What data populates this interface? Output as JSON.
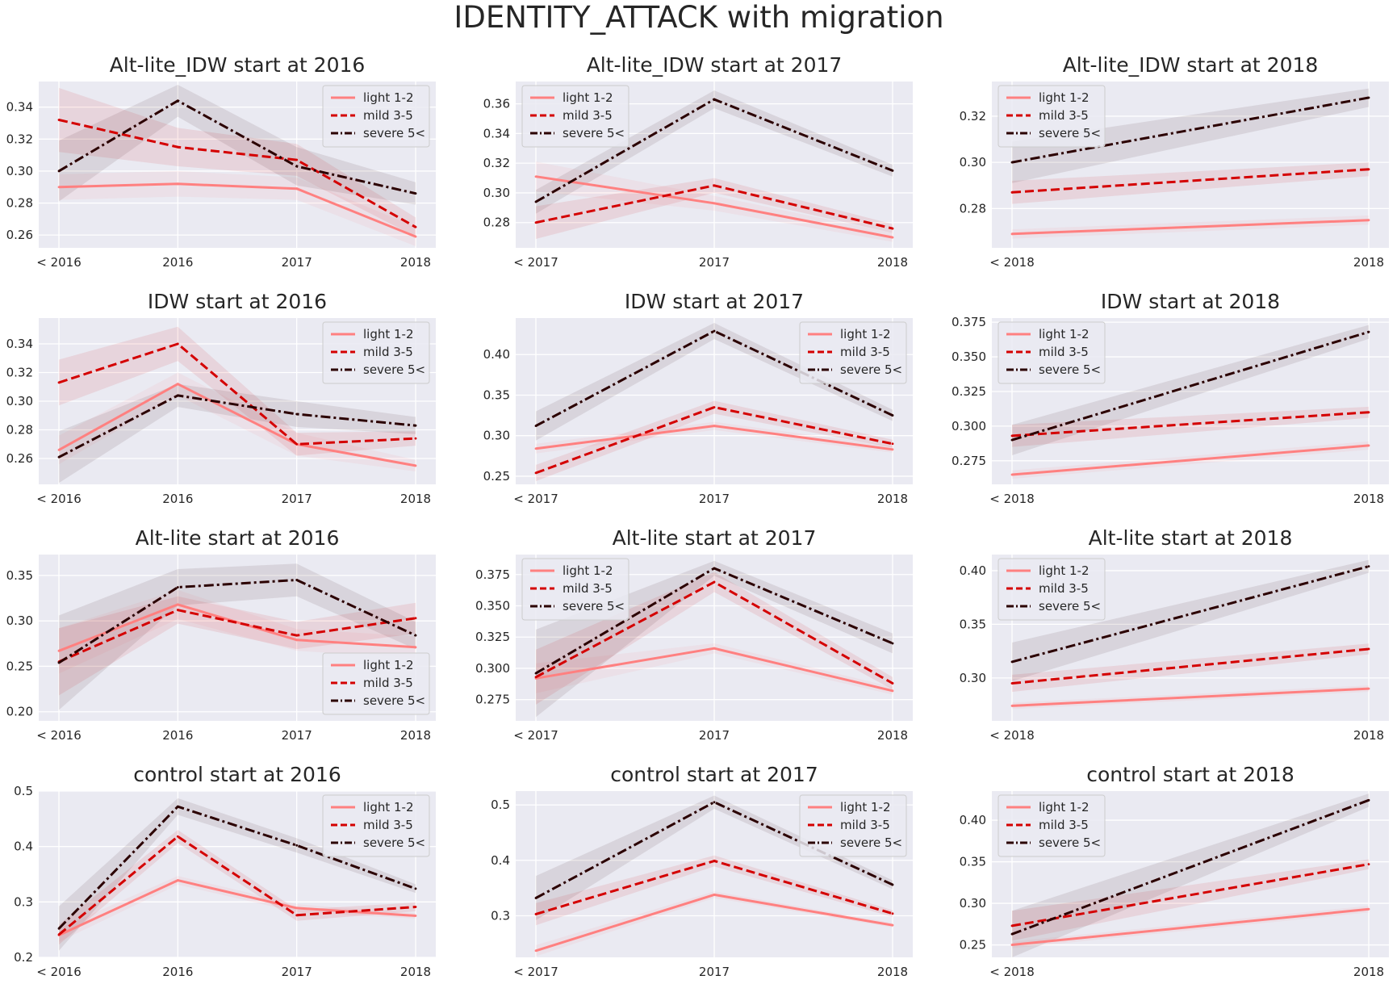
{
  "suptitle": "IDENTITY_ATTACK with migration",
  "series_styles": [
    {
      "name": "light 1-2",
      "color": "#ff8080",
      "dash": "solid"
    },
    {
      "name": "mild 3-5",
      "color": "#d40000",
      "dash": "dashed"
    },
    {
      "name": "severe 5<",
      "color": "#2b0000",
      "dash": "dashdot"
    }
  ],
  "chart_data": [
    {
      "type": "line",
      "title": "Alt-lite_IDW start at 2016",
      "categories": [
        "< 2016",
        "2016",
        "2017",
        "2018"
      ],
      "ylim": [
        0.252,
        0.356
      ],
      "yticks": [
        0.26,
        0.28,
        0.3,
        0.32,
        0.34
      ],
      "ytick_labels": [
        "0.26",
        "0.28",
        "0.30",
        "0.32",
        "0.34"
      ],
      "legend": "top-right",
      "series": [
        {
          "name": "light 1-2",
          "values": [
            0.29,
            0.292,
            0.289,
            0.259
          ],
          "ci": [
            0.008,
            0.008,
            0.007,
            0.006
          ]
        },
        {
          "name": "mild 3-5",
          "values": [
            0.332,
            0.315,
            0.307,
            0.265
          ],
          "ci": [
            0.02,
            0.012,
            0.01,
            0.006
          ]
        },
        {
          "name": "severe 5<",
          "values": [
            0.3,
            0.344,
            0.303,
            0.286
          ],
          "ci": [
            0.019,
            0.01,
            0.012,
            0.007
          ]
        }
      ]
    },
    {
      "type": "line",
      "title": "Alt-lite_IDW start at 2017",
      "categories": [
        "< 2017",
        "2017",
        "2018"
      ],
      "ylim": [
        0.263,
        0.375
      ],
      "yticks": [
        0.28,
        0.3,
        0.32,
        0.34,
        0.36
      ],
      "ytick_labels": [
        "0.28",
        "0.30",
        "0.32",
        "0.34",
        "0.36"
      ],
      "legend": "top-left",
      "series": [
        {
          "name": "light 1-2",
          "values": [
            0.311,
            0.293,
            0.27
          ],
          "ci": [
            0.01,
            0.005,
            0.003
          ]
        },
        {
          "name": "mild 3-5",
          "values": [
            0.28,
            0.305,
            0.276
          ],
          "ci": [
            0.011,
            0.005,
            0.003
          ]
        },
        {
          "name": "severe 5<",
          "values": [
            0.294,
            0.363,
            0.315
          ],
          "ci": [
            0.008,
            0.006,
            0.004
          ]
        }
      ]
    },
    {
      "type": "line",
      "title": "Alt-lite_IDW start at 2018",
      "categories": [
        "< 2018",
        "2018"
      ],
      "ylim": [
        0.263,
        0.335
      ],
      "yticks": [
        0.28,
        0.3,
        0.32
      ],
      "ytick_labels": [
        "0.28",
        "0.30",
        "0.32"
      ],
      "legend": "top-left",
      "series": [
        {
          "name": "light 1-2",
          "values": [
            0.269,
            0.275
          ],
          "ci": [
            0.002,
            0.002
          ]
        },
        {
          "name": "mild 3-5",
          "values": [
            0.287,
            0.297
          ],
          "ci": [
            0.005,
            0.003
          ]
        },
        {
          "name": "severe 5<",
          "values": [
            0.3,
            0.328
          ],
          "ci": [
            0.009,
            0.004
          ]
        }
      ]
    },
    {
      "type": "line",
      "title": "IDW start at 2016",
      "categories": [
        "< 2016",
        "2016",
        "2017",
        "2018"
      ],
      "ylim": [
        0.242,
        0.358
      ],
      "yticks": [
        0.26,
        0.28,
        0.3,
        0.32,
        0.34
      ],
      "ytick_labels": [
        "0.26",
        "0.28",
        "0.30",
        "0.32",
        "0.34"
      ],
      "legend": "top-right",
      "series": [
        {
          "name": "light 1-2",
          "values": [
            0.266,
            0.312,
            0.27,
            0.255
          ],
          "ci": [
            0.01,
            0.008,
            0.008,
            0.004
          ]
        },
        {
          "name": "mild 3-5",
          "values": [
            0.313,
            0.34,
            0.27,
            0.274
          ],
          "ci": [
            0.016,
            0.012,
            0.008,
            0.005
          ]
        },
        {
          "name": "severe 5<",
          "values": [
            0.261,
            0.304,
            0.291,
            0.283
          ],
          "ci": [
            0.018,
            0.008,
            0.009,
            0.006
          ]
        }
      ]
    },
    {
      "type": "line",
      "title": "IDW start at 2017",
      "categories": [
        "< 2017",
        "2017",
        "2018"
      ],
      "ylim": [
        0.24,
        0.445
      ],
      "yticks": [
        0.25,
        0.3,
        0.35,
        0.4
      ],
      "ytick_labels": [
        "0.25",
        "0.30",
        "0.35",
        "0.40"
      ],
      "legend": "top-right",
      "series": [
        {
          "name": "light 1-2",
          "values": [
            0.284,
            0.312,
            0.283
          ],
          "ci": [
            0.006,
            0.005,
            0.004
          ]
        },
        {
          "name": "mild 3-5",
          "values": [
            0.254,
            0.335,
            0.29
          ],
          "ci": [
            0.01,
            0.008,
            0.005
          ]
        },
        {
          "name": "severe 5<",
          "values": [
            0.312,
            0.429,
            0.325
          ],
          "ci": [
            0.018,
            0.01,
            0.007
          ]
        }
      ]
    },
    {
      "type": "line",
      "title": "IDW start at 2018",
      "categories": [
        "< 2018",
        "2018"
      ],
      "ylim": [
        0.258,
        0.378
      ],
      "yticks": [
        0.275,
        0.3,
        0.325,
        0.35,
        0.375
      ],
      "ytick_labels": [
        "0.275",
        "0.300",
        "0.325",
        "0.350",
        "0.375"
      ],
      "legend": "top-left",
      "series": [
        {
          "name": "light 1-2",
          "values": [
            0.265,
            0.286
          ],
          "ci": [
            0.003,
            0.003
          ]
        },
        {
          "name": "mild 3-5",
          "values": [
            0.293,
            0.31
          ],
          "ci": [
            0.008,
            0.004
          ]
        },
        {
          "name": "severe 5<",
          "values": [
            0.29,
            0.368
          ],
          "ci": [
            0.011,
            0.005
          ]
        }
      ]
    },
    {
      "type": "line",
      "title": "Alt-lite start at 2016",
      "categories": [
        "< 2016",
        "2016",
        "2017",
        "2018"
      ],
      "ylim": [
        0.19,
        0.373
      ],
      "yticks": [
        0.2,
        0.25,
        0.3,
        0.35
      ],
      "ytick_labels": [
        "0.20",
        "0.25",
        "0.30",
        "0.35"
      ],
      "legend": "bottom-right",
      "series": [
        {
          "name": "light 1-2",
          "values": [
            0.267,
            0.318,
            0.279,
            0.271
          ],
          "ci": [
            0.025,
            0.016,
            0.012,
            0.012
          ]
        },
        {
          "name": "mild 3-5",
          "values": [
            0.255,
            0.312,
            0.284,
            0.303
          ],
          "ci": [
            0.037,
            0.015,
            0.015,
            0.017
          ]
        },
        {
          "name": "severe 5<",
          "values": [
            0.254,
            0.337,
            0.345,
            0.284
          ],
          "ci": [
            0.052,
            0.02,
            0.018,
            0.015
          ]
        }
      ]
    },
    {
      "type": "line",
      "title": "Alt-lite start at 2017",
      "categories": [
        "< 2017",
        "2017",
        "2018"
      ],
      "ylim": [
        0.258,
        0.391
      ],
      "yticks": [
        0.275,
        0.3,
        0.325,
        0.35,
        0.375
      ],
      "ytick_labels": [
        "0.275",
        "0.300",
        "0.325",
        "0.350",
        "0.375"
      ],
      "legend": "top-left",
      "series": [
        {
          "name": "light 1-2",
          "values": [
            0.292,
            0.316,
            0.282
          ],
          "ci": [
            0.012,
            0.004,
            0.003
          ]
        },
        {
          "name": "mild 3-5",
          "values": [
            0.293,
            0.369,
            0.288
          ],
          "ci": [
            0.022,
            0.008,
            0.005
          ]
        },
        {
          "name": "severe 5<",
          "values": [
            0.296,
            0.38,
            0.32
          ],
          "ci": [
            0.035,
            0.006,
            0.008
          ]
        }
      ]
    },
    {
      "type": "line",
      "title": "Alt-lite start at 2018",
      "categories": [
        "< 2018",
        "2018"
      ],
      "ylim": [
        0.26,
        0.415
      ],
      "yticks": [
        0.3,
        0.35,
        0.4
      ],
      "ytick_labels": [
        "0.30",
        "0.35",
        "0.40"
      ],
      "legend": "top-left",
      "series": [
        {
          "name": "light 1-2",
          "values": [
            0.274,
            0.29
          ],
          "ci": [
            0.003,
            0.003
          ]
        },
        {
          "name": "mild 3-5",
          "values": [
            0.295,
            0.327
          ],
          "ci": [
            0.008,
            0.005
          ]
        },
        {
          "name": "severe 5<",
          "values": [
            0.315,
            0.404
          ],
          "ci": [
            0.018,
            0.006
          ]
        }
      ]
    },
    {
      "type": "line",
      "title": "control start at 2016",
      "categories": [
        "< 2016",
        "2016",
        "2017",
        "2018"
      ],
      "ylim": [
        0.2,
        0.5
      ],
      "yticks": [
        0.2,
        0.3,
        0.4,
        0.5
      ],
      "ytick_labels": [
        "0.2",
        "0.3",
        "0.4",
        "0.5"
      ],
      "legend": "top-right",
      "series": [
        {
          "name": "light 1-2",
          "values": [
            0.24,
            0.339,
            0.289,
            0.275
          ],
          "ci": [
            0.012,
            0.008,
            0.007,
            0.005
          ]
        },
        {
          "name": "mild 3-5",
          "values": [
            0.241,
            0.418,
            0.276,
            0.291
          ],
          "ci": [
            0.018,
            0.012,
            0.01,
            0.008
          ]
        },
        {
          "name": "severe 5<",
          "values": [
            0.252,
            0.472,
            0.402,
            0.324
          ],
          "ci": [
            0.04,
            0.015,
            0.013,
            0.008
          ]
        }
      ]
    },
    {
      "type": "line",
      "title": "control start at 2017",
      "categories": [
        "< 2017",
        "2017",
        "2018"
      ],
      "ylim": [
        0.225,
        0.525
      ],
      "yticks": [
        0.3,
        0.4,
        0.5
      ],
      "ytick_labels": [
        "0.3",
        "0.4",
        "0.5"
      ],
      "legend": "top-right",
      "series": [
        {
          "name": "light 1-2",
          "values": [
            0.237,
            0.338,
            0.283
          ],
          "ci": [
            0.01,
            0.006,
            0.004
          ]
        },
        {
          "name": "mild 3-5",
          "values": [
            0.303,
            0.399,
            0.304
          ],
          "ci": [
            0.02,
            0.01,
            0.006
          ]
        },
        {
          "name": "severe 5<",
          "values": [
            0.332,
            0.505,
            0.356
          ],
          "ci": [
            0.04,
            0.012,
            0.008
          ]
        }
      ]
    },
    {
      "type": "line",
      "title": "control start at 2018",
      "categories": [
        "< 2018",
        "2018"
      ],
      "ylim": [
        0.235,
        0.435
      ],
      "yticks": [
        0.25,
        0.3,
        0.35,
        0.4
      ],
      "ytick_labels": [
        "0.25",
        "0.30",
        "0.35",
        "0.40"
      ],
      "legend": "top-left",
      "series": [
        {
          "name": "light 1-2",
          "values": [
            0.25,
            0.293
          ],
          "ci": [
            0.004,
            0.004
          ]
        },
        {
          "name": "mild 3-5",
          "values": [
            0.273,
            0.347
          ],
          "ci": [
            0.018,
            0.006
          ]
        },
        {
          "name": "severe 5<",
          "values": [
            0.263,
            0.424
          ],
          "ci": [
            0.028,
            0.008
          ]
        }
      ]
    }
  ]
}
